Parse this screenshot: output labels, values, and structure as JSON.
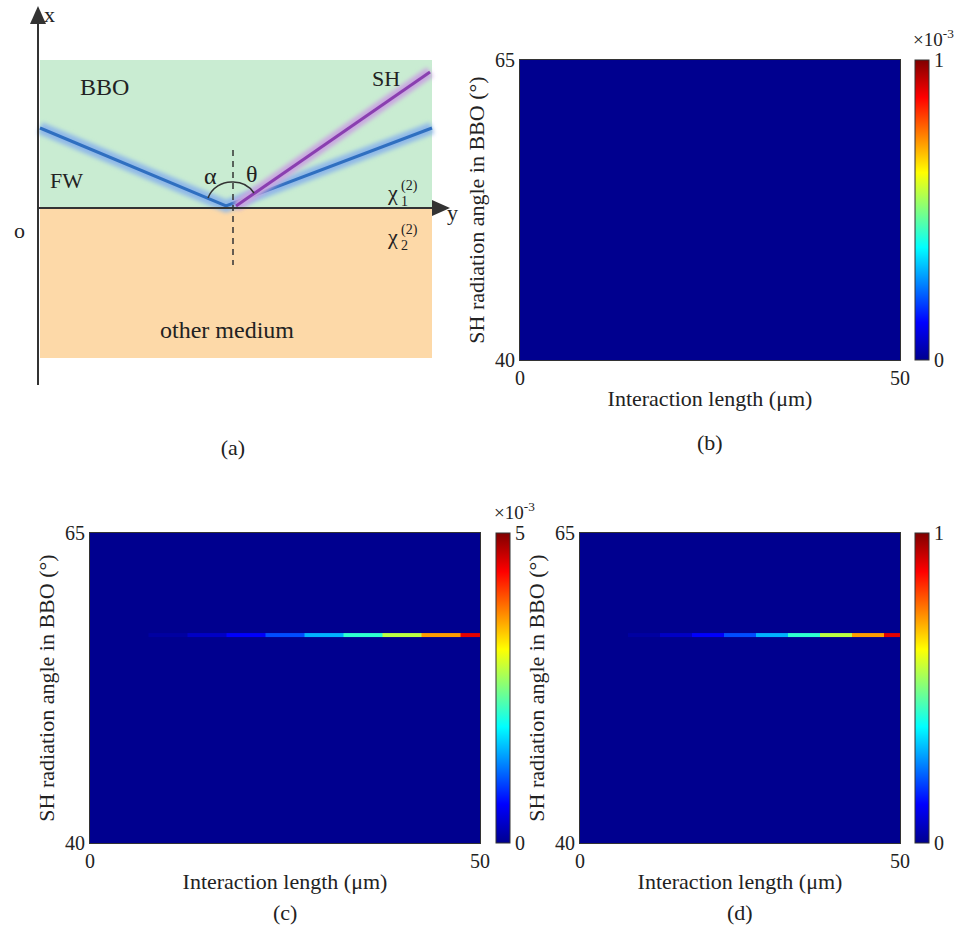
{
  "diagram": {
    "panel_label": "(a)",
    "axes": {
      "vertical": "x",
      "horizontal": "y",
      "origin": "o"
    },
    "regions": {
      "upper": "BBO",
      "lower": "other medium"
    },
    "beams": {
      "fundamental": "FW",
      "second_harmonic": "SH"
    },
    "angles": {
      "incidence": "α",
      "radiation": "θ"
    },
    "susceptibilities": [
      {
        "symbol": "χ",
        "subscript": "1",
        "superscript": "(2)"
      },
      {
        "symbol": "χ",
        "subscript": "2",
        "superscript": "(2)"
      }
    ]
  },
  "chart_data": [
    {
      "type": "heatmap",
      "panel_label": "(b)",
      "x_label": "Interaction length (μm)",
      "y_label": "SH radiation angle in BBO (°)",
      "xlim": [
        0,
        50
      ],
      "xticks": [
        0,
        50
      ],
      "ylim": [
        40,
        65
      ],
      "yticks": [
        40,
        65
      ],
      "x": [
        0,
        5,
        10,
        15,
        20,
        25,
        30,
        35,
        40,
        45,
        50
      ],
      "y": [
        40,
        56.5,
        56.8,
        57.1,
        65
      ],
      "cells": [
        [
          0,
          0,
          0,
          0,
          0,
          0,
          0,
          0,
          0,
          0,
          0
        ],
        [
          0,
          0,
          0,
          0,
          0,
          0,
          0,
          0,
          0,
          0,
          0
        ],
        [
          0,
          0,
          0,
          0,
          0,
          0,
          0,
          0,
          0,
          0,
          0
        ],
        [
          0,
          0,
          0,
          0,
          0,
          0,
          0,
          0,
          0,
          0,
          0
        ],
        [
          0,
          0,
          0,
          0,
          0,
          0,
          0,
          0,
          0,
          0,
          0
        ]
      ],
      "colorbar_range": [
        0,
        0.001
      ],
      "colorbar_ticks": [
        {
          "value": 0,
          "label": "0"
        },
        {
          "value": 0.001,
          "label": "1"
        }
      ],
      "colorbar_multiplier": {
        "text": "×10",
        "exponent": "-3"
      }
    },
    {
      "type": "heatmap",
      "panel_label": "(c)",
      "x_label": "Interaction length (μm)",
      "y_label": "SH radiation angle in BBO (°)",
      "xlim": [
        0,
        50
      ],
      "xticks": [
        0,
        50
      ],
      "ylim": [
        40,
        65
      ],
      "yticks": [
        40,
        65
      ],
      "x": [
        0,
        5,
        10,
        15,
        20,
        25,
        30,
        35,
        40,
        45,
        50
      ],
      "y": [
        40,
        56.5,
        56.8,
        57.1,
        65
      ],
      "cells": [
        [
          0,
          0,
          0,
          0,
          0,
          0,
          0,
          0,
          0,
          0,
          0
        ],
        [
          0,
          0,
          0,
          0,
          0,
          0,
          0,
          0,
          0,
          0,
          0
        ],
        [
          0,
          0,
          0.0001,
          0.0003,
          0.0006,
          0.001,
          0.0015,
          0.0021,
          0.0028,
          0.0036,
          0.0045
        ],
        [
          0,
          0,
          0,
          0,
          0,
          0,
          0,
          0,
          0,
          0,
          0
        ],
        [
          0,
          0,
          0,
          0,
          0,
          0,
          0,
          0,
          0,
          0,
          0
        ]
      ],
      "colorbar_range": [
        0,
        0.005
      ],
      "colorbar_ticks": [
        {
          "value": 0,
          "label": "0"
        },
        {
          "value": 0.005,
          "label": "5"
        }
      ],
      "colorbar_multiplier": {
        "text": "×10",
        "exponent": "-3"
      }
    },
    {
      "type": "heatmap",
      "panel_label": "(d)",
      "x_label": "Interaction length (μm)",
      "y_label": "SH radiation angle in BBO (°)",
      "xlim": [
        0,
        50
      ],
      "xticks": [
        0,
        50
      ],
      "ylim": [
        40,
        65
      ],
      "yticks": [
        40,
        65
      ],
      "x": [
        0,
        5,
        10,
        15,
        20,
        25,
        30,
        35,
        40,
        45,
        50
      ],
      "y": [
        40,
        56.5,
        56.8,
        57.1,
        65
      ],
      "cells": [
        [
          0,
          0,
          0,
          0,
          0,
          0,
          0,
          0,
          0,
          0,
          0
        ],
        [
          0,
          0,
          0,
          0,
          0,
          0,
          0,
          0,
          0,
          0,
          0
        ],
        [
          0,
          0,
          0.02,
          0.06,
          0.12,
          0.2,
          0.3,
          0.42,
          0.56,
          0.72,
          0.9
        ],
        [
          0,
          0,
          0,
          0,
          0,
          0,
          0,
          0,
          0,
          0,
          0
        ],
        [
          0,
          0,
          0,
          0,
          0,
          0,
          0,
          0,
          0,
          0,
          0
        ]
      ],
      "colorbar_range": [
        0,
        1
      ],
      "colorbar_ticks": [
        0,
        1
      ]
    }
  ]
}
